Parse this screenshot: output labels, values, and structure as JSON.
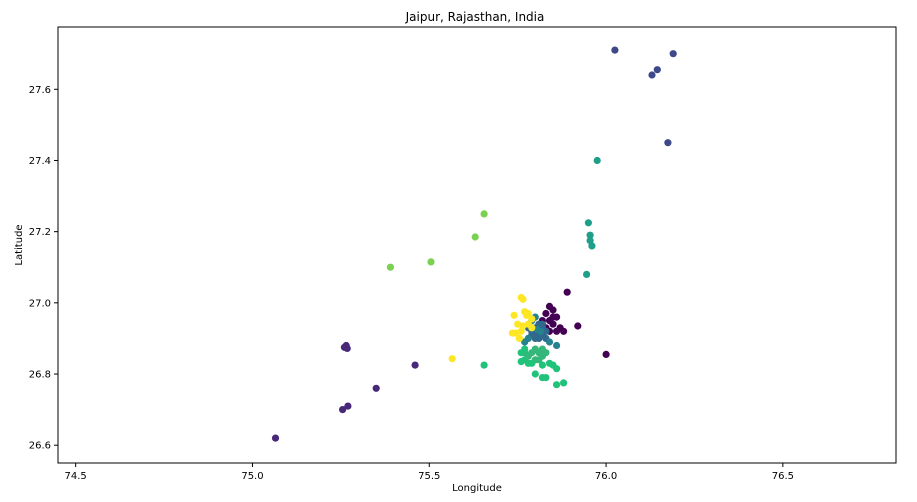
{
  "chart_data": {
    "type": "scatter",
    "title": "Jaipur, Rajasthan, India",
    "xlabel": "Longitude",
    "ylabel": "Latitude",
    "xlim": [
      74.45,
      76.82
    ],
    "ylim": [
      26.55,
      27.775
    ],
    "xticks": [
      74.5,
      75.0,
      75.5,
      76.0,
      76.5
    ],
    "xtick_labels": [
      "74.5",
      "75.0",
      "75.5",
      "76.0",
      "76.5"
    ],
    "yticks": [
      26.6,
      26.8,
      27.0,
      27.2,
      27.4,
      27.6
    ],
    "ytick_labels": [
      "26.6",
      "26.8",
      "27.0",
      "27.2",
      "27.4",
      "27.6"
    ],
    "grid": false,
    "legend": "none",
    "series": [
      {
        "color": "#440154",
        "points": [
          [
            75.84,
            26.99
          ],
          [
            75.85,
            26.98
          ],
          [
            75.83,
            26.97
          ],
          [
            75.86,
            26.96
          ],
          [
            75.84,
            26.95
          ],
          [
            75.82,
            26.95
          ],
          [
            75.85,
            26.94
          ],
          [
            75.83,
            26.93
          ],
          [
            75.86,
            26.92
          ],
          [
            75.84,
            26.92
          ],
          [
            75.88,
            26.92
          ],
          [
            75.87,
            26.93
          ],
          [
            75.85,
            26.96
          ],
          [
            75.89,
            27.03
          ],
          [
            75.92,
            26.935
          ],
          [
            76.0,
            26.855
          ]
        ]
      },
      {
        "color": "#482878",
        "points": [
          [
            75.065,
            26.62
          ],
          [
            75.255,
            26.7
          ],
          [
            75.27,
            26.71
          ],
          [
            75.35,
            26.76
          ],
          [
            75.46,
            26.825
          ],
          [
            75.26,
            26.875
          ],
          [
            75.265,
            26.88
          ],
          [
            75.268,
            26.872
          ]
        ]
      },
      {
        "color": "#3e4989",
        "points": [
          [
            76.025,
            27.71
          ],
          [
            76.19,
            27.7
          ],
          [
            76.145,
            27.655
          ],
          [
            76.13,
            27.64
          ],
          [
            76.175,
            27.45
          ]
        ]
      },
      {
        "color": "#31688e",
        "points": [
          [
            75.8,
            26.93
          ],
          [
            75.81,
            26.92
          ],
          [
            75.82,
            26.91
          ],
          [
            75.8,
            26.9
          ],
          [
            75.79,
            26.92
          ],
          [
            75.81,
            26.94
          ],
          [
            75.82,
            26.93
          ],
          [
            75.83,
            26.92
          ],
          [
            75.8,
            26.91
          ],
          [
            75.79,
            26.91
          ],
          [
            75.81,
            26.9
          ],
          [
            75.82,
            26.94
          ],
          [
            75.78,
            26.93
          ],
          [
            75.83,
            26.9
          ]
        ]
      },
      {
        "color": "#26828e",
        "points": [
          [
            75.84,
            26.89
          ],
          [
            75.86,
            26.88
          ],
          [
            75.78,
            26.9
          ],
          [
            75.77,
            26.89
          ],
          [
            75.8,
            26.96
          ],
          [
            75.79,
            26.95
          ],
          [
            75.815,
            26.92
          ],
          [
            75.805,
            26.925
          ]
        ]
      },
      {
        "color": "#1f9e89",
        "points": [
          [
            75.975,
            27.4
          ],
          [
            75.95,
            27.225
          ],
          [
            75.955,
            27.19
          ],
          [
            75.955,
            27.175
          ],
          [
            75.96,
            27.16
          ],
          [
            75.945,
            27.08
          ]
        ]
      },
      {
        "color": "#35b779",
        "points": [
          [
            75.8,
            26.87
          ],
          [
            75.81,
            26.86
          ],
          [
            75.82,
            26.85
          ],
          [
            75.79,
            26.86
          ],
          [
            75.78,
            26.85
          ],
          [
            75.8,
            26.84
          ],
          [
            75.83,
            26.86
          ],
          [
            75.82,
            26.87
          ],
          [
            75.77,
            26.86
          ],
          [
            75.81,
            26.84
          ]
        ]
      },
      {
        "color": "#21c27a",
        "points": [
          [
            75.76,
            26.86
          ],
          [
            75.77,
            26.84
          ],
          [
            75.78,
            26.83
          ],
          [
            75.8,
            26.8
          ],
          [
            75.82,
            26.79
          ],
          [
            75.83,
            26.79
          ],
          [
            75.86,
            26.77
          ],
          [
            75.88,
            26.775
          ],
          [
            75.86,
            26.815
          ],
          [
            75.84,
            26.83
          ],
          [
            75.85,
            26.825
          ],
          [
            75.82,
            26.825
          ],
          [
            75.79,
            26.83
          ],
          [
            75.76,
            26.835
          ],
          [
            75.77,
            26.87
          ],
          [
            75.655,
            26.825
          ]
        ]
      },
      {
        "color": "#7ad151",
        "points": [
          [
            75.655,
            27.25
          ],
          [
            75.63,
            27.185
          ],
          [
            75.505,
            27.115
          ],
          [
            75.39,
            27.1
          ]
        ]
      },
      {
        "color": "#fde725",
        "points": [
          [
            75.76,
            27.015
          ],
          [
            75.765,
            27.01
          ],
          [
            75.77,
            26.975
          ],
          [
            75.775,
            26.965
          ],
          [
            75.78,
            26.97
          ],
          [
            75.79,
            26.955
          ],
          [
            75.74,
            26.965
          ],
          [
            75.75,
            26.94
          ],
          [
            75.765,
            26.935
          ],
          [
            75.76,
            26.92
          ],
          [
            75.745,
            26.915
          ],
          [
            75.755,
            26.9
          ],
          [
            75.78,
            26.94
          ],
          [
            75.79,
            26.93
          ],
          [
            75.735,
            26.915
          ],
          [
            75.565,
            26.843
          ]
        ]
      }
    ]
  }
}
